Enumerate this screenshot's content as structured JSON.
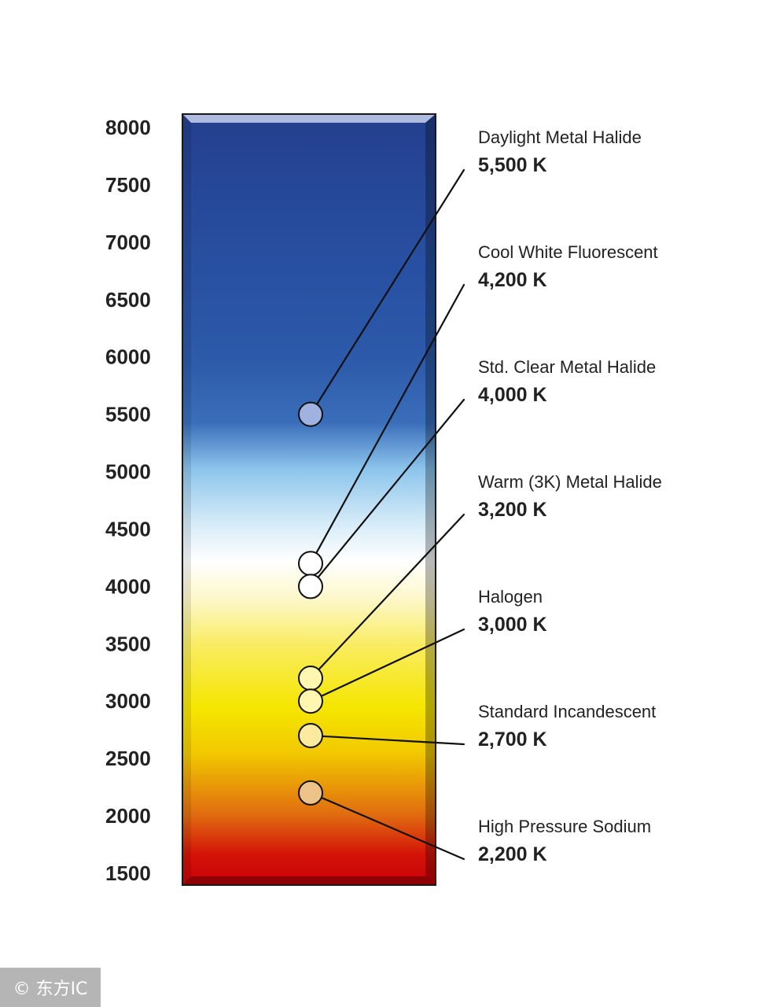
{
  "chart_data": {
    "type": "scale",
    "title": "",
    "axis": {
      "unit": "K",
      "min": 1500,
      "max": 8000,
      "ticks": [
        8000,
        7500,
        7000,
        6500,
        6000,
        5500,
        5000,
        4500,
        4000,
        3500,
        3000,
        2500,
        2000,
        1500
      ]
    },
    "colors": {
      "top": "#243f8e",
      "blue": "#2d5aaa",
      "sky": "#8cc4ec",
      "white": "#ffffff",
      "yellow": "#f5e600",
      "orange": "#e06a10",
      "red": "#c80008"
    },
    "sources": [
      {
        "name": "Daylight Metal Halide",
        "value_label": "5,500 K",
        "kelvin": 5500,
        "dot_color": "#9fb2e0"
      },
      {
        "name": "Cool White Fluorescent",
        "value_label": "4,200 K",
        "kelvin": 4200,
        "dot_color": "#ffffff"
      },
      {
        "name": "Std. Clear Metal Halide",
        "value_label": "4,000 K",
        "kelvin": 4000,
        "dot_color": "#ffffff"
      },
      {
        "name": "Warm (3K) Metal Halide",
        "value_label": "3,200 K",
        "kelvin": 3200,
        "dot_color": "#fff7b0"
      },
      {
        "name": "Halogen",
        "value_label": "3,000 K",
        "kelvin": 3000,
        "dot_color": "#fff7b0"
      },
      {
        "name": "Standard Incandescent",
        "value_label": "2,700 K",
        "kelvin": 2700,
        "dot_color": "#fbeaa0"
      },
      {
        "name": "High Pressure Sodium",
        "value_label": "2,200 K",
        "kelvin": 2200,
        "dot_color": "#eec38a"
      }
    ]
  },
  "watermark": "© 东方IC"
}
